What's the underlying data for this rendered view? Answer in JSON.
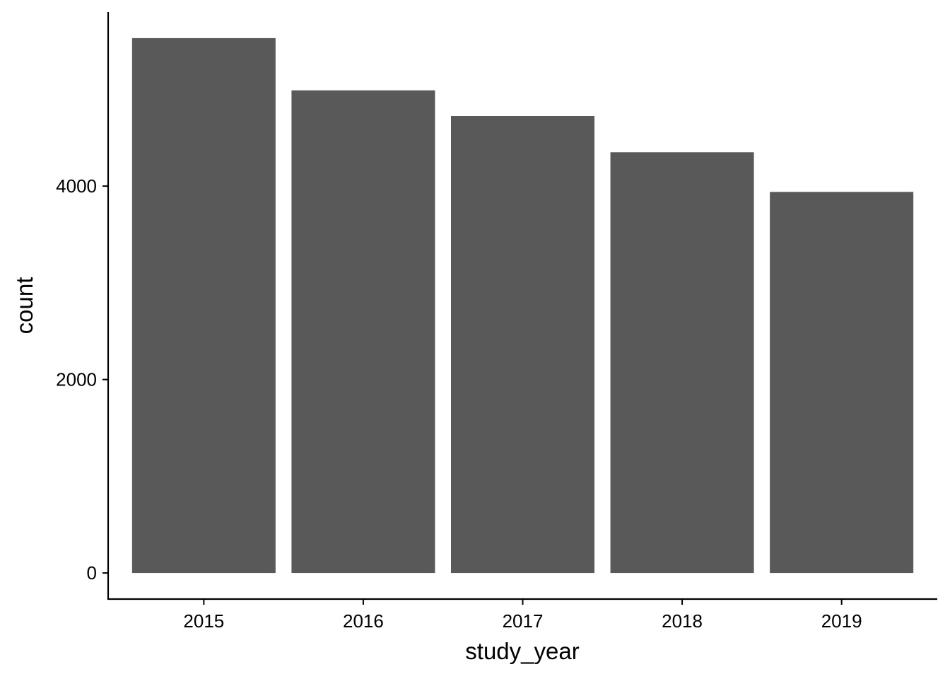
{
  "chart_data": {
    "type": "bar",
    "title": "",
    "xlabel": "study_year",
    "ylabel": "count",
    "categories": [
      "2015",
      "2016",
      "2017",
      "2018",
      "2019"
    ],
    "values": [
      5530,
      4990,
      4725,
      4350,
      3940
    ],
    "ylim": [
      -270,
      5800
    ],
    "yticks": [
      0,
      2000,
      4000
    ],
    "ytick_labels": [
      "0",
      "2000",
      "4000"
    ],
    "grid": false,
    "legend": "none",
    "bar_color": "#595959",
    "axis_color": "#000000"
  }
}
